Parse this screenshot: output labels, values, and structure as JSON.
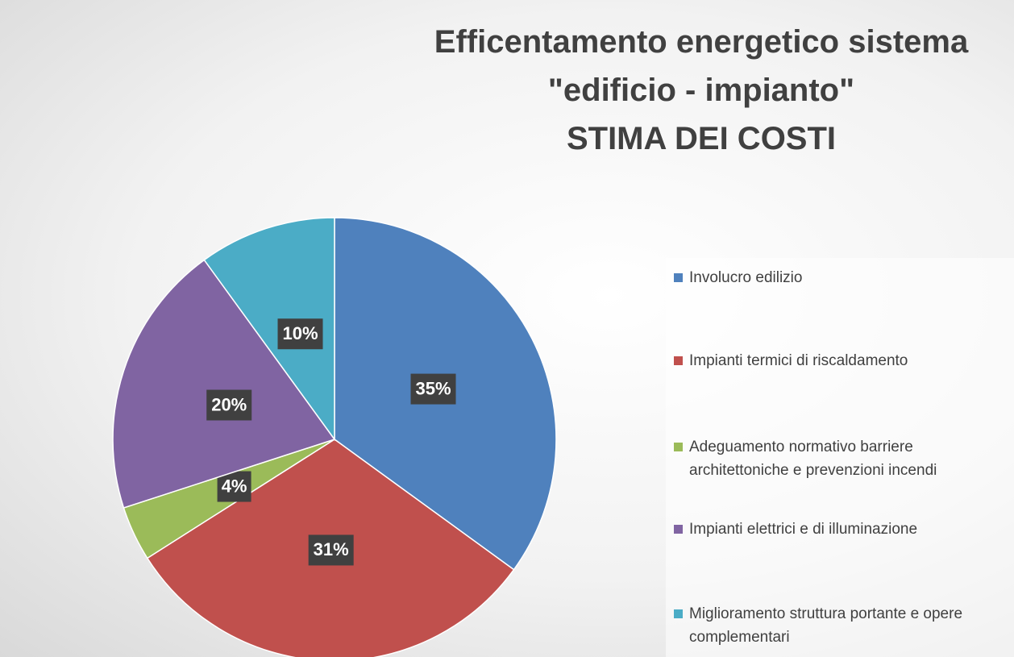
{
  "chart_data": {
    "type": "pie",
    "title": [
      "Efficentamento energetico sistema",
      "\"edificio - impianto\"",
      "STIMA DEI COSTI"
    ],
    "categories": [
      "Involucro edilizio",
      "Impianti termici di riscaldamento",
      "Adeguamento normativo barriere architettoniche e prevenzioni incendi",
      "Impianti elettrici e di illuminazione",
      "Miglioramento struttura portante e opere complementari"
    ],
    "values": [
      35,
      31,
      4,
      20,
      10
    ],
    "value_labels": [
      "35%",
      "31%",
      "4%",
      "20%",
      "10%"
    ],
    "colors": [
      "#4f81bd",
      "#c0504d",
      "#9bbb59",
      "#8064a2",
      "#4bacc6"
    ],
    "legend": "right"
  }
}
